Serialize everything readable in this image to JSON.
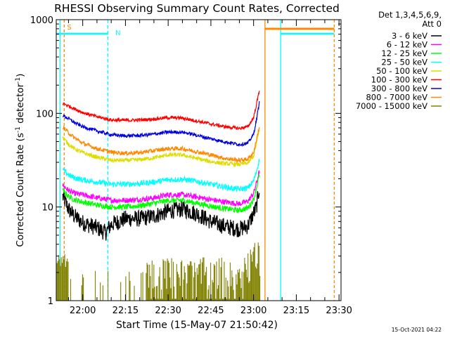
{
  "chart_data": {
    "type": "line",
    "title": "RHESSI Observing Summary Count Rates, Corrected",
    "xlabel": "Start Time (15-May-07 21:50:42)",
    "ylabel_parts": [
      "Corrected Count Rate (s",
      "-1",
      " detector",
      "-1",
      ")"
    ],
    "yscale": "log",
    "ylim": [
      1,
      1000
    ],
    "y_ticks": [
      {
        "v": 1,
        "label": "1"
      },
      {
        "v": 10,
        "label": "10"
      },
      {
        "v": 100,
        "label": "100"
      },
      {
        "v": 1000,
        "label": "1000"
      }
    ],
    "xlim": [
      "21:50:42",
      "23:30:42"
    ],
    "x_ticks": [
      {
        "t": "22:00",
        "label": "22:00"
      },
      {
        "t": "22:15",
        "label": "22:15"
      },
      {
        "t": "22:30",
        "label": "22:30"
      },
      {
        "t": "22:45",
        "label": "22:45"
      },
      {
        "t": "23:00",
        "label": "23:00"
      },
      {
        "t": "23:15",
        "label": "23:15"
      },
      {
        "t": "23:30",
        "label": "23:30"
      }
    ],
    "legend_title": "Det 1,3,4,5,6,9,",
    "legend_subtitle": "Att 0",
    "legend_position": "top-right, outside plot",
    "series": [
      {
        "name": "3 - 6 keV",
        "color": "#000000",
        "points": [
          [
            "21:53",
            13
          ],
          [
            "21:55",
            9.5
          ],
          [
            "21:57",
            8
          ],
          [
            "22:00",
            6.8
          ],
          [
            "22:05",
            6
          ],
          [
            "22:08",
            5.3
          ],
          [
            "22:10",
            6.5
          ],
          [
            "22:15",
            7.5
          ],
          [
            "22:20",
            7.5
          ],
          [
            "22:25",
            8
          ],
          [
            "22:30",
            9
          ],
          [
            "22:35",
            9.5
          ],
          [
            "22:40",
            8.5
          ],
          [
            "22:45",
            7
          ],
          [
            "22:50",
            6.2
          ],
          [
            "22:55",
            5.8
          ],
          [
            "22:58",
            6.3
          ],
          [
            "23:01",
            10
          ],
          [
            "23:02",
            16
          ]
        ]
      },
      {
        "name": "6 - 12 keV",
        "color": "#ff00ff",
        "points": [
          [
            "21:53",
            17
          ],
          [
            "21:55",
            15
          ],
          [
            "21:57",
            14
          ],
          [
            "22:00",
            13.5
          ],
          [
            "22:05",
            12.5
          ],
          [
            "22:10",
            11.8
          ],
          [
            "22:15",
            11.8
          ],
          [
            "22:20",
            12
          ],
          [
            "22:25",
            12.5
          ],
          [
            "22:30",
            13.5
          ],
          [
            "22:35",
            13.5
          ],
          [
            "22:40",
            12.8
          ],
          [
            "22:45",
            12
          ],
          [
            "22:50",
            11.3
          ],
          [
            "22:55",
            10.8
          ],
          [
            "22:58",
            11.5
          ],
          [
            "23:00",
            14
          ],
          [
            "23:01",
            18
          ],
          [
            "23:02",
            24
          ]
        ]
      },
      {
        "name": "12 - 25 keV",
        "color": "#00ff00",
        "points": [
          [
            "21:53",
            15
          ],
          [
            "21:55",
            13
          ],
          [
            "21:57",
            12
          ],
          [
            "22:00",
            11.3
          ],
          [
            "22:05",
            10.5
          ],
          [
            "22:10",
            10
          ],
          [
            "22:15",
            10
          ],
          [
            "22:20",
            10.3
          ],
          [
            "22:25",
            11
          ],
          [
            "22:30",
            11.7
          ],
          [
            "22:35",
            11.8
          ],
          [
            "22:40",
            11
          ],
          [
            "22:45",
            10.2
          ],
          [
            "22:50",
            9.6
          ],
          [
            "22:55",
            9.2
          ],
          [
            "22:58",
            9.8
          ],
          [
            "23:00",
            12
          ],
          [
            "23:01",
            16
          ],
          [
            "23:02",
            22
          ]
        ]
      },
      {
        "name": "25 - 50 keV",
        "color": "#00ffff",
        "points": [
          [
            "21:53",
            25
          ],
          [
            "21:55",
            22
          ],
          [
            "21:57",
            20.5
          ],
          [
            "22:00",
            19.5
          ],
          [
            "22:05",
            18.5
          ],
          [
            "22:10",
            17.5
          ],
          [
            "22:15",
            17.5
          ],
          [
            "22:20",
            17.8
          ],
          [
            "22:25",
            18.5
          ],
          [
            "22:30",
            19.5
          ],
          [
            "22:35",
            19.8
          ],
          [
            "22:40",
            18.8
          ],
          [
            "22:45",
            17.5
          ],
          [
            "22:50",
            16.3
          ],
          [
            "22:55",
            15.5
          ],
          [
            "22:58",
            16
          ],
          [
            "23:00",
            19
          ],
          [
            "23:01",
            24
          ],
          [
            "23:02",
            32
          ]
        ]
      },
      {
        "name": "50 - 100 keV",
        "color": "#dddd00",
        "points": [
          [
            "21:53",
            55
          ],
          [
            "21:55",
            47
          ],
          [
            "21:57",
            42
          ],
          [
            "22:00",
            38
          ],
          [
            "22:05",
            34
          ],
          [
            "22:10",
            31.5
          ],
          [
            "22:15",
            31.5
          ],
          [
            "22:20",
            32
          ],
          [
            "22:25",
            33.5
          ],
          [
            "22:30",
            36
          ],
          [
            "22:35",
            36
          ],
          [
            "22:40",
            33
          ],
          [
            "22:45",
            30.5
          ],
          [
            "22:50",
            29
          ],
          [
            "22:55",
            28.5
          ],
          [
            "22:58",
            29.5
          ],
          [
            "23:00",
            35
          ],
          [
            "23:01",
            48
          ],
          [
            "23:02",
            66
          ]
        ]
      },
      {
        "name": "100 - 300 keV",
        "color": "#ff0000",
        "points": [
          [
            "21:53",
            128
          ],
          [
            "21:55",
            120
          ],
          [
            "21:57",
            112
          ],
          [
            "22:00",
            102
          ],
          [
            "22:05",
            92
          ],
          [
            "22:10",
            85
          ],
          [
            "22:15",
            84
          ],
          [
            "22:20",
            85
          ],
          [
            "22:25",
            87
          ],
          [
            "22:30",
            90
          ],
          [
            "22:35",
            89
          ],
          [
            "22:40",
            83
          ],
          [
            "22:45",
            77
          ],
          [
            "22:50",
            72
          ],
          [
            "22:55",
            69
          ],
          [
            "22:58",
            72
          ],
          [
            "23:00",
            90
          ],
          [
            "23:01",
            125
          ],
          [
            "23:02",
            175
          ]
        ]
      },
      {
        "name": "300 - 800 keV",
        "color": "#0000dd",
        "points": [
          [
            "21:53",
            95
          ],
          [
            "21:55",
            88
          ],
          [
            "21:57",
            80
          ],
          [
            "22:00",
            72
          ],
          [
            "22:05",
            65
          ],
          [
            "22:10",
            59
          ],
          [
            "22:15",
            57.5
          ],
          [
            "22:20",
            58
          ],
          [
            "22:25",
            60
          ],
          [
            "22:30",
            63
          ],
          [
            "22:35",
            63
          ],
          [
            "22:40",
            58.5
          ],
          [
            "22:45",
            53.5
          ],
          [
            "22:50",
            49.5
          ],
          [
            "22:55",
            46.5
          ],
          [
            "22:58",
            48
          ],
          [
            "23:00",
            60
          ],
          [
            "23:01",
            85
          ],
          [
            "23:02",
            130
          ]
        ]
      },
      {
        "name": "800 - 7000 keV",
        "color": "#ff8800",
        "points": [
          [
            "21:53",
            72
          ],
          [
            "21:55",
            62
          ],
          [
            "21:57",
            55
          ],
          [
            "22:00",
            48
          ],
          [
            "22:05",
            42
          ],
          [
            "22:10",
            38.5
          ],
          [
            "22:15",
            37.5
          ],
          [
            "22:20",
            38
          ],
          [
            "22:25",
            40
          ],
          [
            "22:30",
            42
          ],
          [
            "22:35",
            42
          ],
          [
            "22:40",
            39
          ],
          [
            "22:45",
            36
          ],
          [
            "22:50",
            33
          ],
          [
            "22:55",
            31.5
          ],
          [
            "22:58",
            32.5
          ],
          [
            "23:00",
            38
          ],
          [
            "23:01",
            52
          ],
          [
            "23:02",
            72
          ]
        ]
      },
      {
        "name": "7000 - 15000 keV",
        "color": "#808000",
        "points": []
      }
    ],
    "annotations": [
      {
        "text": "S",
        "color": "#ff8800",
        "t": "21:53"
      },
      {
        "text": "N",
        "color": "#00ffff",
        "t": "22:10"
      }
    ]
  },
  "footer_timestamp": "15-Oct-2021 04:22"
}
